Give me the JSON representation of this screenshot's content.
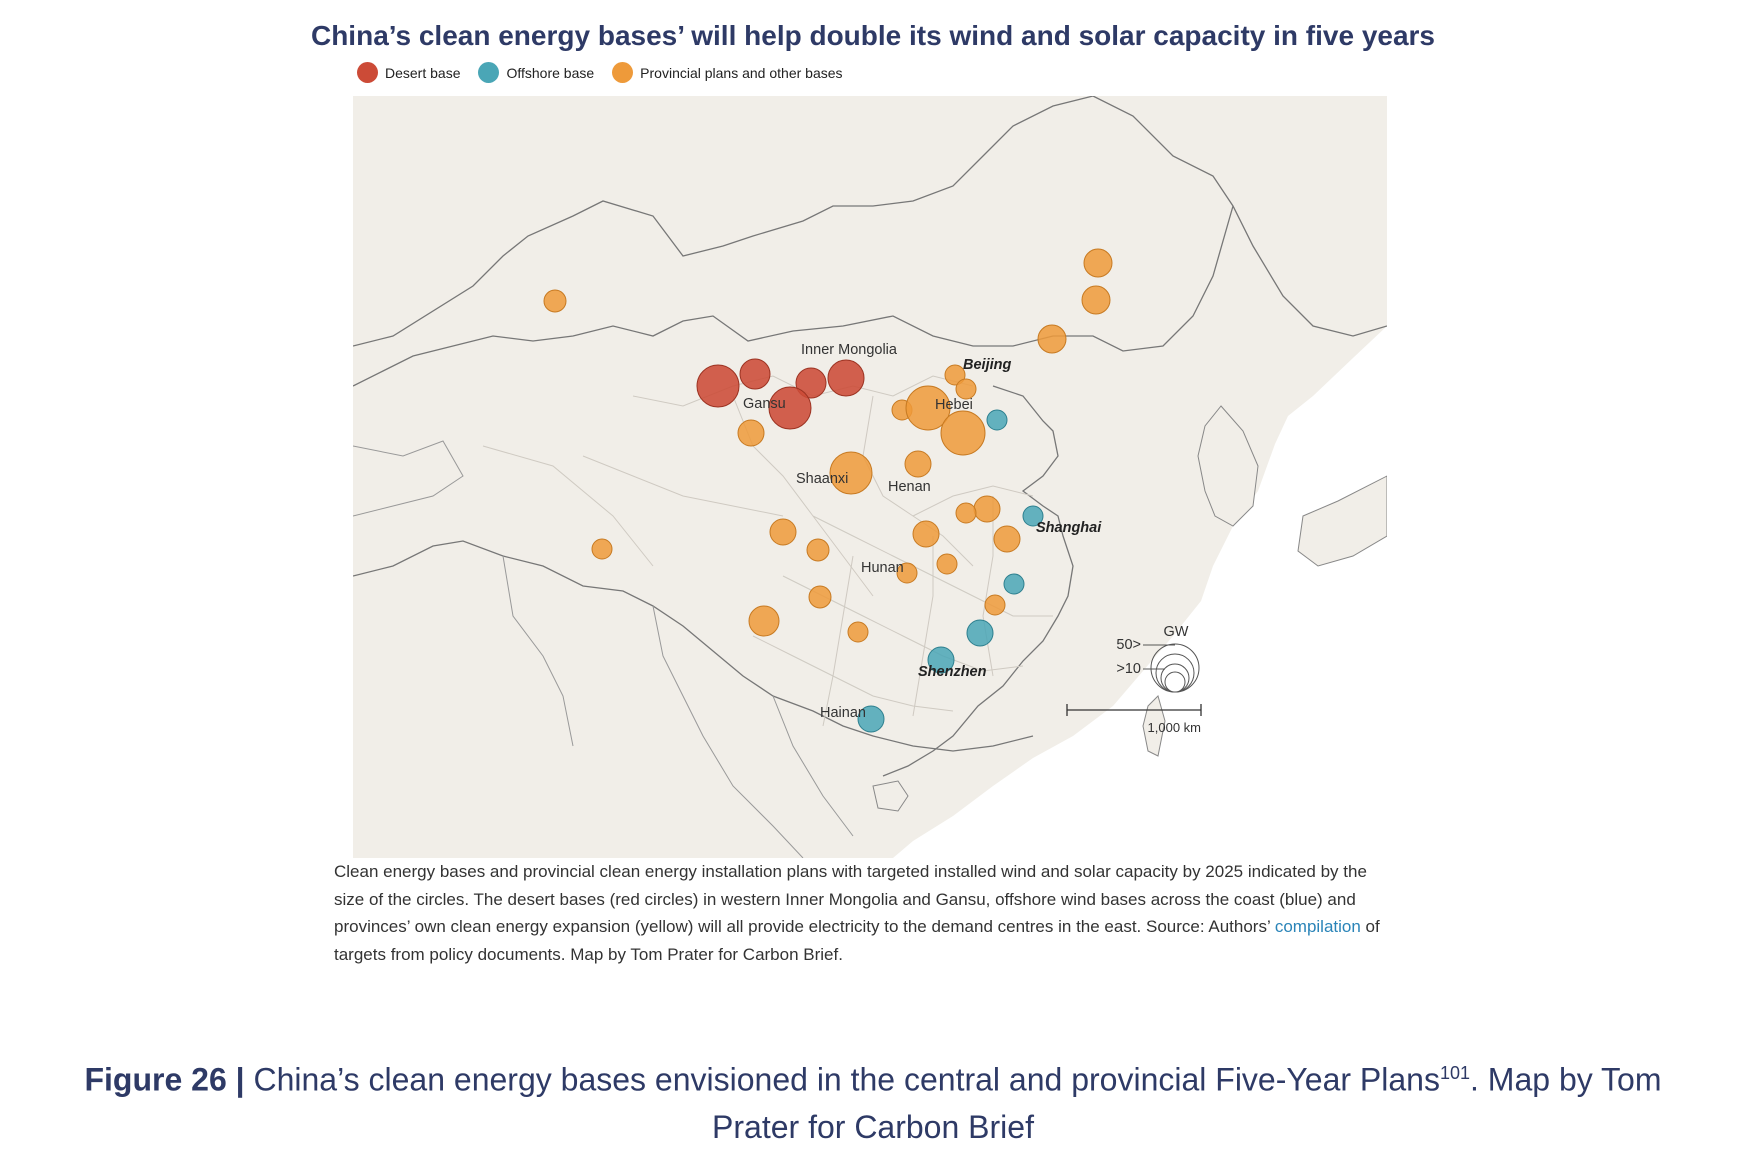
{
  "title": "China’s clean energy bases’  will help double its wind and solar capacity in five years",
  "legend": {
    "desert": {
      "label": "Desert base",
      "color": "#cc4b37"
    },
    "offshore": {
      "label": "Offshore base",
      "color": "#4aa6b6"
    },
    "provincial": {
      "label": "Provincial plans and other bases",
      "color": "#ee9a3a"
    }
  },
  "map": {
    "labels": {
      "inner_mongolia": "Inner Mongolia",
      "beijing": "Beijing",
      "gansu": "Gansu",
      "hebei": "Hebei",
      "shaanxi": "Shaanxi",
      "henan": "Henan",
      "shanghai": "Shanghai",
      "hunan": "Hunan",
      "shenzhen": "Shenzhen",
      "hainan": "Hainan"
    },
    "size_legend": {
      "unit": "GW",
      "large": "50>",
      "small": ">10"
    },
    "scale": "1,000 km"
  },
  "caption": {
    "text_before": "Clean energy bases and provincial clean energy installation plans with targeted installed wind and solar capacity by 2025 indicated by the size of the circles. The desert bases (red circles) in western Inner Mongolia and Gansu, offshore wind bases across the coast (blue) and provinces’ own clean energy expansion (yellow) will all provide electricity to the demand centres in the east. Source: Authors’ ",
    "link": "compilation",
    "text_after": " of targets from policy documents. Map by Tom Prater for Carbon Brief."
  },
  "figure": {
    "label": "Figure 26 |",
    "text": " China’s clean energy bases envisioned in the central and provincial Five-Year Plans",
    "sup": "101",
    "text_after": ". Map by Tom Prater for Carbon Brief"
  }
}
